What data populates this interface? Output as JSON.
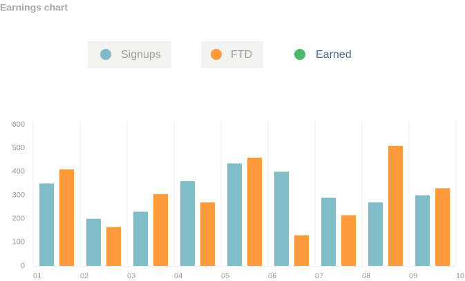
{
  "chart_data": {
    "type": "bar",
    "title": "Earnings chart",
    "categories": [
      "01",
      "02",
      "03",
      "04",
      "05",
      "06",
      "07",
      "08",
      "09",
      "10"
    ],
    "series": [
      {
        "name": "Signups",
        "color": "#80bdc9",
        "values": [
          350,
          200,
          230,
          360,
          435,
          400,
          290,
          270,
          300,
          null
        ]
      },
      {
        "name": "FTD",
        "color": "#ff9b3b",
        "values": [
          410,
          165,
          305,
          270,
          460,
          130,
          215,
          510,
          330,
          null
        ]
      },
      {
        "name": "Earned",
        "color": "#4cb86a",
        "values": [
          null,
          null,
          null,
          null,
          null,
          null,
          null,
          null,
          null,
          null
        ]
      }
    ],
    "ylim": [
      0,
      600
    ],
    "yticks": [
      0,
      100,
      200,
      300,
      400,
      500,
      600
    ],
    "grid": true
  }
}
